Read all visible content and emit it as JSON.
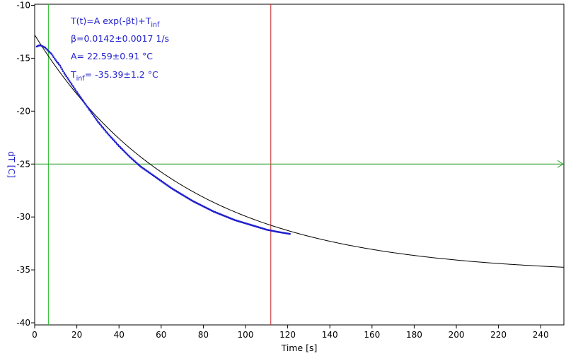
{
  "chart_data": {
    "type": "scatter",
    "xlabel": "Time [s]",
    "ylabel": "dT [C]",
    "xlim": [
      0,
      251
    ],
    "ylim": [
      -40.2,
      -9.9
    ],
    "x_ticks": [
      0,
      20,
      40,
      60,
      80,
      100,
      120,
      140,
      160,
      180,
      200,
      220,
      240
    ],
    "y_ticks": [
      -10,
      -15,
      -20,
      -25,
      -30,
      -35,
      -40
    ],
    "grid": false,
    "annotation": {
      "line1_main": "T(t)=A exp(-βt)+T",
      "line1_sub": "inf",
      "line2": "β=0.0142±0.0017 1/s",
      "line3": "A= 22.59±0.91 °C",
      "line4_main": "T",
      "line4_sub": "inf",
      "line4_rest": "= -35.39±1.2 °C"
    },
    "fit": {
      "A": 22.59,
      "beta": 0.0142,
      "T_inf": -35.39,
      "x_range": [
        0,
        251
      ]
    },
    "cursors": {
      "vertical_green_x": 6.5,
      "vertical_red_x": 112,
      "horizontal_green_y": -25
    },
    "measured_points": {
      "x": [
        1,
        2,
        3,
        4,
        5,
        6,
        7,
        8,
        9,
        10,
        12,
        14,
        16,
        18,
        20,
        25,
        30,
        35,
        40,
        45,
        50,
        55,
        60,
        65,
        70,
        75,
        80,
        85,
        90,
        95,
        100,
        105,
        110,
        115,
        121
      ],
      "y": [
        -13.9,
        -13.8,
        -13.8,
        -13.9,
        -14.0,
        -14.2,
        -14.4,
        -14.6,
        -14.9,
        -15.2,
        -15.7,
        -16.4,
        -17.0,
        -17.6,
        -18.2,
        -19.6,
        -21.0,
        -22.2,
        -23.3,
        -24.3,
        -25.2,
        -25.9,
        -26.6,
        -27.3,
        -27.9,
        -28.5,
        -29.0,
        -29.5,
        -29.9,
        -30.3,
        -30.6,
        -30.9,
        -31.2,
        -31.4,
        -31.6
      ]
    },
    "colors": {
      "points": "#1f1fcc",
      "fit_line": "#000000",
      "green_cursor": "#22bb22",
      "red_cursor": "#cc2222",
      "horizontal_cursor": "#229922",
      "ylabel": "#1f1fcc",
      "annotation_text": "#1f1fcc"
    }
  }
}
